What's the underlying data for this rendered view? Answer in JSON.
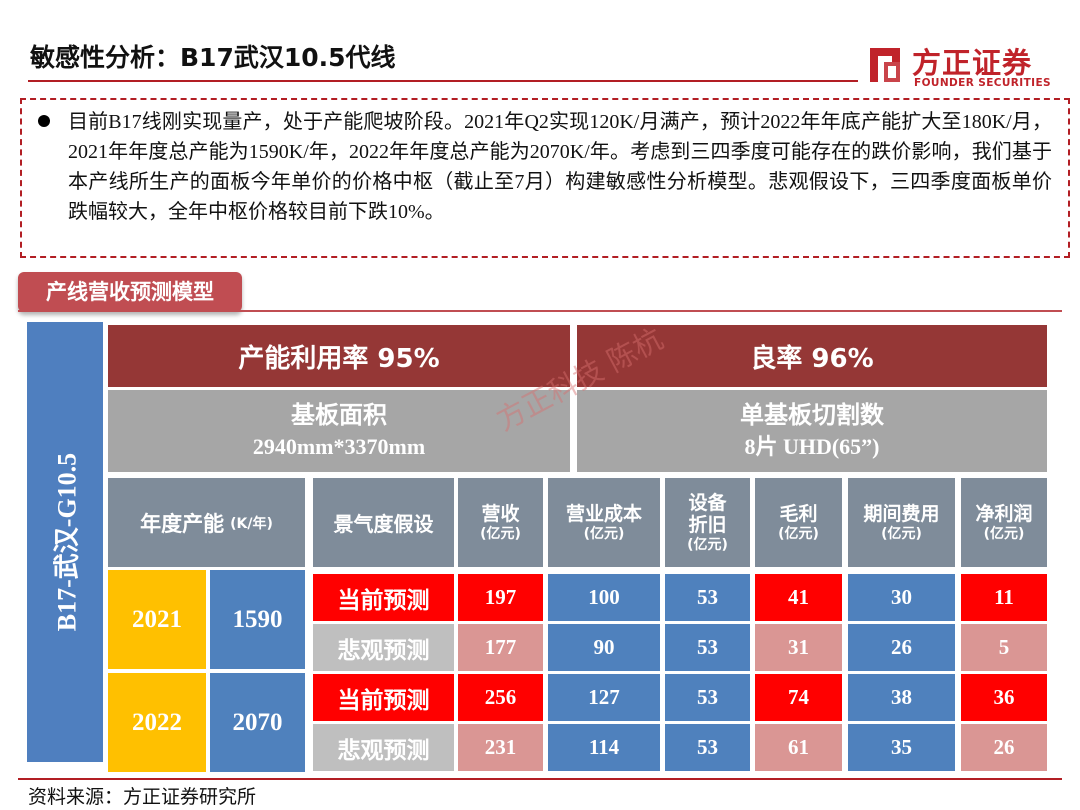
{
  "header": {
    "title": "敏感性分析：B17武汉10.5代线",
    "logo_cn": "方正证券",
    "logo_en": "FOUNDER SECURITIES"
  },
  "summary": {
    "text": "目前B17线刚实现量产，处于产能爬坡阶段。2021年Q2实现120K/月满产，预计2022年年底产能扩大至180K/月，2021年年度总产能为1590K/年，2022年年度总产能为2070K/年。考虑到三四季度可能存在的跌价影响，我们基于本产线所生产的面板今年单价的价格中枢（截止至7月）构建敏感性分析模型。悲观假设下，三四季度面板单价跌幅较大，全年中枢价格较目前下跌10%。"
  },
  "section": {
    "label": "产线营收预测模型"
  },
  "model": {
    "line_label": "B17-武汉-G10.5",
    "utilization": "产能利用率 95%",
    "yield": "良率 96%",
    "substrate_title": "基板面积",
    "substrate_value": "2940mm*3370mm",
    "cuts_title": "单基板切割数",
    "cuts_value": "8片 UHD(65”)",
    "watermark": "方正科技 陈杭",
    "col_headers": {
      "capacity": {
        "label": "年度产能",
        "unit": "(K/年)"
      },
      "scenario": {
        "label": "景气度假设"
      },
      "revenue": {
        "label": "营收",
        "unit": "(亿元)"
      },
      "cost": {
        "label": "营业成本",
        "unit": "(亿元)"
      },
      "depreciation": {
        "label_1": "设备",
        "label_2": "折旧",
        "unit": "(亿元)"
      },
      "gross": {
        "label": "毛利",
        "unit": "(亿元)"
      },
      "expense": {
        "label": "期间费用",
        "unit": "(亿元)"
      },
      "net": {
        "label": "净利润",
        "unit": "(亿元)"
      }
    },
    "years": [
      {
        "year": "2021",
        "capacity": "1590",
        "rows": [
          {
            "scenario": "当前预测",
            "revenue": "197",
            "cost": "100",
            "depreciation": "53",
            "gross": "41",
            "expense": "30",
            "net": "11"
          },
          {
            "scenario": "悲观预测",
            "revenue": "177",
            "cost": "90",
            "depreciation": "53",
            "gross": "31",
            "expense": "26",
            "net": "5"
          }
        ]
      },
      {
        "year": "2022",
        "capacity": "2070",
        "rows": [
          {
            "scenario": "当前预测",
            "revenue": "256",
            "cost": "127",
            "depreciation": "53",
            "gross": "74",
            "expense": "38",
            "net": "36"
          },
          {
            "scenario": "悲观预测",
            "revenue": "231",
            "cost": "114",
            "depreciation": "53",
            "gross": "61",
            "expense": "35",
            "net": "26"
          }
        ]
      }
    ]
  },
  "footer": {
    "source": "资料来源：方正证券研究所"
  },
  "colors": {
    "brand_red": "#c0232a",
    "header_dark_red": "#953736",
    "current_red": "#ff0000",
    "pessimistic_pink": "#da9694",
    "blue": "#4f81bd",
    "gold": "#ffc000",
    "gray": "#a6a6a6"
  }
}
